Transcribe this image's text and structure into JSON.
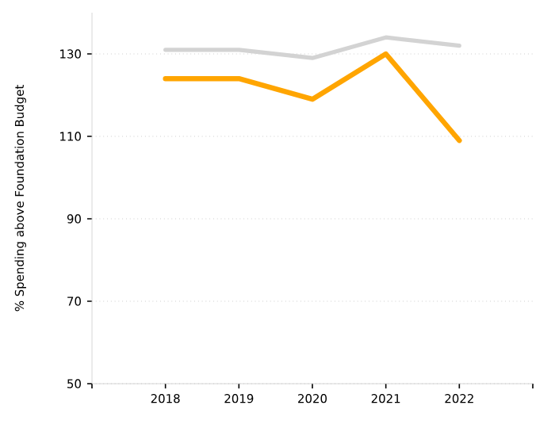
{
  "chart_data": {
    "type": "line",
    "ylabel": "% Spending above Foundation Budget",
    "x": [
      2018,
      2019,
      2020,
      2021,
      2022
    ],
    "series": [
      {
        "color": "#d3d3d3",
        "values": [
          131,
          131,
          129,
          134,
          132
        ]
      },
      {
        "color": "#ffa500",
        "values": [
          124,
          124,
          119,
          130,
          109
        ]
      }
    ],
    "xlim": [
      2017,
      2023
    ],
    "xticks": [
      {
        "value": 2017,
        "label": null
      },
      2018,
      2019,
      2020,
      2021,
      2022,
      {
        "value": 2023,
        "label": null
      }
    ],
    "ylim": [
      50,
      140
    ],
    "yticks": [
      50,
      70,
      90,
      110,
      130
    ],
    "grid": "y",
    "marker": "none",
    "line_style": "solid"
  }
}
